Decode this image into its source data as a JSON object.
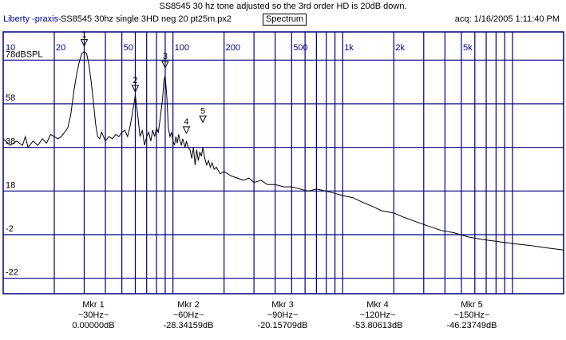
{
  "header": {
    "title": "SS8545 30 hz tone adjusted so the 3rd order HD is 20dB down.",
    "app_name": "Liberty -praxis-",
    "file_name": "SS8545 30hz single 3HD neg 20 pt25m.px2",
    "view_label": "Spectrum",
    "acq": "acq: 1/16/2005 1:11:40 PM"
  },
  "colors": {
    "grid": "#000080",
    "trace": "#000000",
    "border": "#000080",
    "label_blue": "#000080"
  },
  "chart_data": {
    "type": "line",
    "x_scale": "log",
    "xlim": [
      10,
      20000
    ],
    "ylim": [
      -32,
      88
    ],
    "ylabel": "dBSPL",
    "x_tick_labels": [
      {
        "value": 10,
        "label": "10"
      },
      {
        "value": 20,
        "label": "20"
      },
      {
        "value": 50,
        "label": "50"
      },
      {
        "value": 100,
        "label": "100"
      },
      {
        "value": 200,
        "label": "200"
      },
      {
        "value": 500,
        "label": "500"
      },
      {
        "value": 1000,
        "label": "1k"
      },
      {
        "value": 2000,
        "label": "2k"
      },
      {
        "value": 5000,
        "label": "5k"
      }
    ],
    "y_tick_labels": [
      {
        "value": 78,
        "label": "78dBSPL"
      },
      {
        "value": 58,
        "label": "58"
      },
      {
        "value": 38,
        "label": "38"
      },
      {
        "value": 18,
        "label": "18"
      },
      {
        "value": -2,
        "label": "-2"
      },
      {
        "value": -22,
        "label": "-22"
      }
    ],
    "grid": true,
    "series": [
      {
        "points": [
          [
            10,
            39
          ],
          [
            11,
            36
          ],
          [
            12,
            38
          ],
          [
            13,
            36
          ],
          [
            13.5,
            40
          ],
          [
            14,
            35
          ],
          [
            15,
            38
          ],
          [
            16,
            36
          ],
          [
            17,
            39
          ],
          [
            18,
            37
          ],
          [
            19,
            41
          ],
          [
            20,
            40
          ],
          [
            21,
            39
          ],
          [
            22,
            40
          ],
          [
            23,
            42
          ],
          [
            24,
            44
          ],
          [
            25,
            50
          ],
          [
            26,
            60
          ],
          [
            27,
            68
          ],
          [
            28,
            74
          ],
          [
            29,
            78
          ],
          [
            30,
            79
          ],
          [
            31,
            78
          ],
          [
            32,
            73
          ],
          [
            33,
            65
          ],
          [
            34,
            56
          ],
          [
            35,
            46
          ],
          [
            36,
            40
          ],
          [
            37,
            39
          ],
          [
            38,
            42
          ],
          [
            40,
            38
          ],
          [
            42,
            40
          ],
          [
            44,
            39
          ],
          [
            46,
            41
          ],
          [
            48,
            40
          ],
          [
            50,
            42
          ],
          [
            52,
            43
          ],
          [
            54,
            40
          ],
          [
            56,
            45
          ],
          [
            58,
            52
          ],
          [
            60,
            59
          ],
          [
            62,
            50
          ],
          [
            64,
            40
          ],
          [
            66,
            43
          ],
          [
            68,
            36
          ],
          [
            70,
            40
          ],
          [
            72,
            42
          ],
          [
            74,
            38
          ],
          [
            76,
            43
          ],
          [
            78,
            40
          ],
          [
            80,
            44
          ],
          [
            82,
            42
          ],
          [
            84,
            48
          ],
          [
            87,
            58
          ],
          [
            88.5,
            66
          ],
          [
            90,
            68
          ],
          [
            92,
            58
          ],
          [
            94,
            44
          ],
          [
            96,
            40
          ],
          [
            98,
            42
          ],
          [
            100,
            38
          ],
          [
            102,
            36
          ],
          [
            104,
            40
          ],
          [
            106,
            37
          ],
          [
            108,
            41
          ],
          [
            110,
            38
          ],
          [
            112,
            36
          ],
          [
            114,
            39
          ],
          [
            116,
            37
          ],
          [
            118,
            35
          ],
          [
            120,
            38
          ],
          [
            123,
            35
          ],
          [
            126,
            34
          ],
          [
            129,
            30
          ],
          [
            132,
            35
          ],
          [
            135,
            27
          ],
          [
            138,
            34
          ],
          [
            141,
            29
          ],
          [
            144,
            33
          ],
          [
            147,
            31
          ],
          [
            150,
            35
          ],
          [
            154,
            30
          ],
          [
            158,
            27
          ],
          [
            162,
            29
          ],
          [
            166,
            26
          ],
          [
            170,
            28
          ],
          [
            175,
            25
          ],
          [
            180,
            26
          ],
          [
            190,
            23
          ],
          [
            200,
            24
          ],
          [
            220,
            22
          ],
          [
            240,
            21
          ],
          [
            260,
            20
          ],
          [
            280,
            21
          ],
          [
            300,
            19
          ],
          [
            330,
            20
          ],
          [
            360,
            18
          ],
          [
            400,
            18
          ],
          [
            450,
            17
          ],
          [
            500,
            17
          ],
          [
            560,
            16
          ],
          [
            630,
            15
          ],
          [
            700,
            16
          ],
          [
            800,
            15
          ],
          [
            900,
            14
          ],
          [
            1000,
            13
          ],
          [
            1150,
            12
          ],
          [
            1300,
            10
          ],
          [
            1500,
            8
          ],
          [
            1700,
            6
          ],
          [
            2000,
            5
          ],
          [
            2300,
            3
          ],
          [
            2700,
            1
          ],
          [
            3200,
            -1
          ],
          [
            3800,
            -3
          ],
          [
            4500,
            -4
          ],
          [
            5500,
            -6
          ],
          [
            6500,
            -7
          ],
          [
            8000,
            -8
          ],
          [
            10000,
            -9
          ],
          [
            13000,
            -10
          ],
          [
            16000,
            -11
          ],
          [
            20000,
            -12
          ]
        ]
      }
    ],
    "markers": [
      {
        "label": "1",
        "x": 30,
        "y": 79
      },
      {
        "label": "2",
        "x": 60,
        "y": 58
      },
      {
        "label": "3",
        "x": 90,
        "y": 69
      },
      {
        "label": "4",
        "x": 120,
        "y": 39
      },
      {
        "label": "5",
        "x": 150,
        "y": 44
      }
    ]
  },
  "marker_readouts": [
    {
      "name": "Mkr 1",
      "freq": "~30Hz~",
      "value": "0.00000dB"
    },
    {
      "name": "Mkr 2",
      "freq": "~60Hz~",
      "value": "-28.34159dB"
    },
    {
      "name": "Mkr 3",
      "freq": "~90Hz~",
      "value": "-20.15709dB"
    },
    {
      "name": "Mkr 4",
      "freq": "~120Hz~",
      "value": "-53.80613dB"
    },
    {
      "name": "Mkr 5",
      "freq": "~150Hz~",
      "value": "-46.23749dB"
    }
  ]
}
